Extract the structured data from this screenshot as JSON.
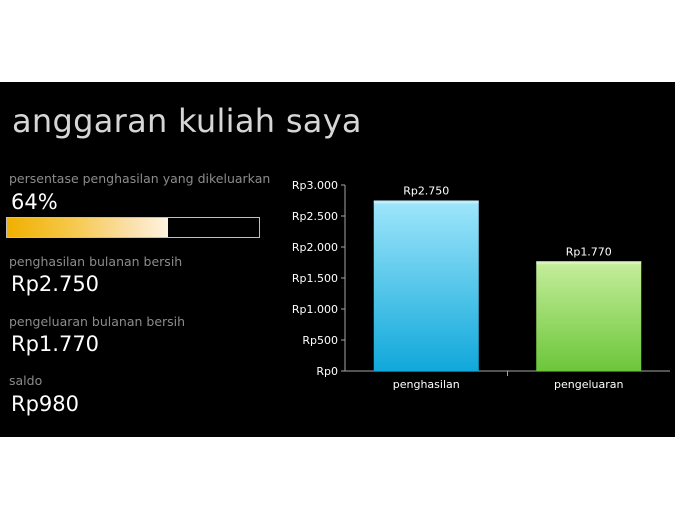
{
  "title": "anggaran kuliah saya",
  "kpis": {
    "percent": {
      "label": "persentase penghasilan yang dikeluarkan",
      "value": "64%",
      "fraction": 0.64
    },
    "income": {
      "label": "penghasilan bulanan bersih",
      "value": "Rp2.750"
    },
    "expense": {
      "label": "pengeluaran bulanan bersih",
      "value": "Rp1.770"
    },
    "balance": {
      "label": "saldo",
      "value": "Rp980"
    }
  },
  "colors": {
    "background": "#000000",
    "income_bar": "#3cbfea",
    "expense_bar": "#8ed35a",
    "progress": "#f0b000"
  },
  "chart_data": {
    "type": "bar",
    "title": "",
    "xlabel": "",
    "ylabel": "",
    "categories": [
      "penghasilan",
      "pengeluaran"
    ],
    "values": [
      2750,
      1770
    ],
    "data_labels": [
      "Rp2.750",
      "Rp1.770"
    ],
    "ylim": [
      0,
      3000
    ],
    "yticks": [
      0,
      500,
      1000,
      1500,
      2000,
      2500,
      3000
    ],
    "ytick_labels": [
      "Rp0",
      "Rp500",
      "Rp1.000",
      "Rp1.500",
      "Rp2.000",
      "Rp2.500",
      "Rp3.000"
    ],
    "grid": false,
    "legend": "none"
  }
}
